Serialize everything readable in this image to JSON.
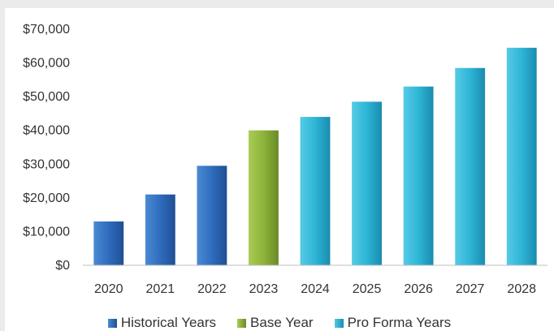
{
  "chart_data": {
    "type": "bar",
    "title": "",
    "xlabel": "",
    "ylabel": "",
    "categories": [
      "2020",
      "2021",
      "2022",
      "2023",
      "2024",
      "2025",
      "2026",
      "2027",
      "2028"
    ],
    "values": [
      13000,
      21000,
      29500,
      40000,
      44000,
      48500,
      53000,
      58500,
      64500
    ],
    "bar_groups": [
      "historical",
      "historical",
      "historical",
      "base",
      "proforma",
      "proforma",
      "proforma",
      "proforma",
      "proforma"
    ],
    "ylim": [
      0,
      70000
    ],
    "yticks": [
      0,
      10000,
      20000,
      30000,
      40000,
      50000,
      60000,
      70000
    ],
    "ytick_labels": [
      "$0",
      "$10,000",
      "$20,000",
      "$30,000",
      "$40,000",
      "$50,000",
      "$60,000",
      "$70,000"
    ],
    "grid": false,
    "legend_position": "bottom",
    "legend": [
      {
        "key": "historical",
        "label": "Historical Years",
        "color": "#2e6fbf"
      },
      {
        "key": "base",
        "label": "Base Year",
        "color": "#8db33a"
      },
      {
        "key": "proforma",
        "label": "Pro Forma Years",
        "color": "#2eb5d6"
      }
    ]
  }
}
